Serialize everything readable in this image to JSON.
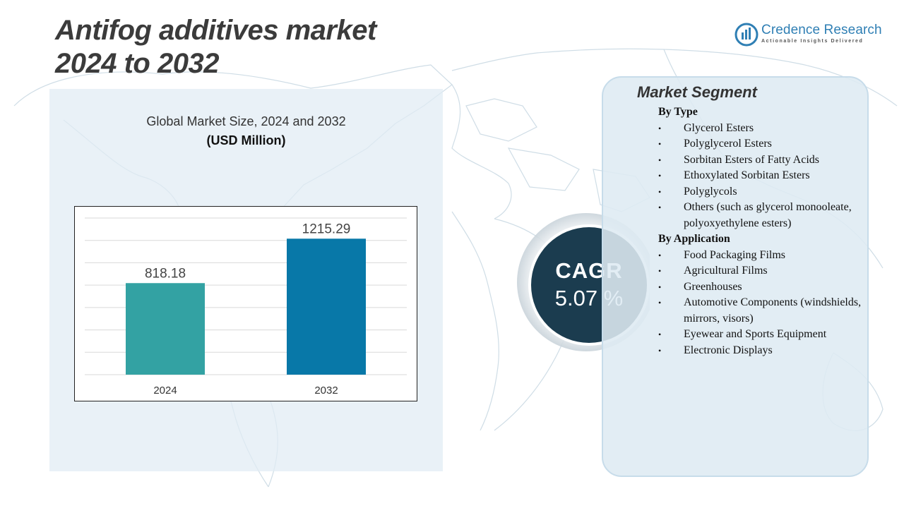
{
  "title": {
    "line1": "Antifog additives market",
    "line2": "2024 to 2032"
  },
  "logo": {
    "name": "Credence Research",
    "tagline": "Actionable Insights Delivered"
  },
  "chart_data": {
    "type": "bar",
    "title": "Global Market Size, 2024 and 2032",
    "subtitle": "(USD Million)",
    "categories": [
      "2024",
      "2032"
    ],
    "values": [
      818.18,
      1215.29
    ],
    "value_labels": [
      "818.18",
      "1215.29"
    ],
    "colors": [
      "#33a2a3",
      "#0878a8"
    ],
    "ylim": [
      0,
      1400
    ],
    "gridlines": [
      200,
      400,
      600,
      800,
      1000,
      1200,
      1400
    ],
    "xlabel": "",
    "ylabel": ""
  },
  "cagr": {
    "label": "CAGR",
    "value": "5.07 %"
  },
  "segments": {
    "title": "Market Segment",
    "groups": [
      {
        "heading": "By Type",
        "items": [
          "Glycerol Esters",
          "Polyglycerol Esters",
          "Sorbitan Esters of Fatty Acids",
          "Ethoxylated Sorbitan Esters",
          "Polyglycols",
          "Others (such as glycerol monooleate, polyoxyethylene esters)"
        ]
      },
      {
        "heading": "By Application",
        "items": [
          "Food Packaging Films",
          "Agricultural  Films",
          "Greenhouses",
          "Automotive  Components (windshields,  mirrors, visors)",
          "Eyewear and Sports Equipment",
          "Electronic Displays"
        ]
      }
    ]
  },
  "colors": {
    "accent": "#1b3c4f",
    "bar_2024": "#33a2a3",
    "bar_2032": "#0878a8",
    "panel": "#dfeaf3"
  },
  "icons": {
    "bullet": "•"
  }
}
